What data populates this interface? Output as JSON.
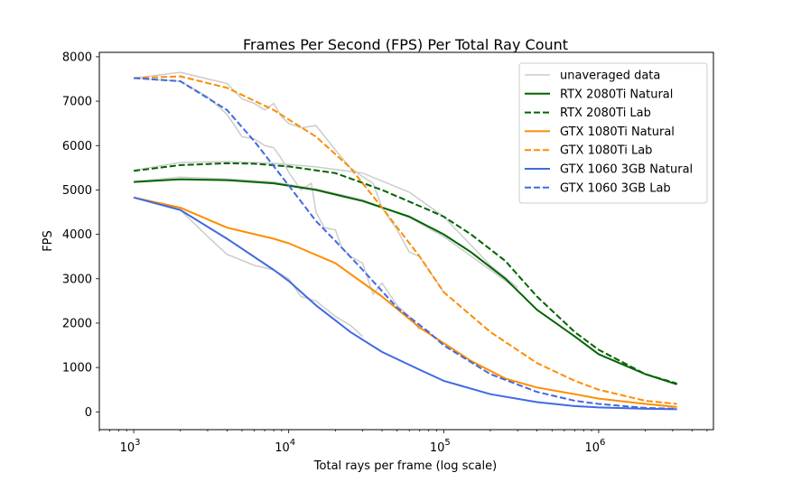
{
  "chart_data": {
    "type": "line",
    "title": "Frames Per Second (FPS) Per Total Ray Count",
    "xlabel": "Total rays per frame (log scale)",
    "ylabel": "FPS",
    "xscale": "log",
    "xlim": [
      600,
      5500000
    ],
    "ylim": [
      -400,
      8100
    ],
    "xticks": [
      {
        "value": 1000,
        "base": "10",
        "exp": "3"
      },
      {
        "value": 10000,
        "base": "10",
        "exp": "4"
      },
      {
        "value": 100000,
        "base": "10",
        "exp": "5"
      },
      {
        "value": 1000000,
        "base": "10",
        "exp": "6"
      }
    ],
    "yticks": [
      "0",
      "1000",
      "2000",
      "3000",
      "4000",
      "5000",
      "6000",
      "7000",
      "8000"
    ],
    "grid": false,
    "legend_position": "top-right",
    "unaveraged_label": "unaveraged data",
    "unaveraged_color": "#cccccc",
    "series": [
      {
        "name": "RTX 2080Ti Natural",
        "color": "#006400",
        "dash": "solid",
        "x": [
          1000,
          2000,
          4000,
          8000,
          15000,
          30000,
          60000,
          100000,
          150000,
          250000,
          400000,
          700000,
          1000000,
          2000000,
          3200000
        ],
        "y": [
          5180,
          5240,
          5220,
          5150,
          5000,
          4750,
          4400,
          4000,
          3600,
          3000,
          2300,
          1700,
          1300,
          850,
          620
        ]
      },
      {
        "name": "RTX 2080Ti Lab",
        "color": "#006400",
        "dash": "dashed",
        "x": [
          1000,
          2000,
          4000,
          6000,
          10000,
          20000,
          40000,
          80000,
          100000,
          150000,
          250000,
          400000,
          700000,
          1000000,
          2000000,
          3200000
        ],
        "y": [
          5430,
          5560,
          5600,
          5590,
          5530,
          5380,
          5000,
          4550,
          4400,
          4000,
          3400,
          2600,
          1800,
          1400,
          850,
          640
        ]
      },
      {
        "name": "GTX 1080Ti Natural",
        "color": "#ff8c00",
        "dash": "solid",
        "x": [
          1000,
          2000,
          4000,
          8000,
          10000,
          20000,
          40000,
          70000,
          100000,
          150000,
          250000,
          400000,
          700000,
          1000000,
          2000000,
          3200000
        ],
        "y": [
          4830,
          4600,
          4150,
          3900,
          3800,
          3350,
          2600,
          1900,
          1550,
          1150,
          750,
          550,
          400,
          300,
          180,
          110
        ]
      },
      {
        "name": "GTX 1080Ti Lab",
        "color": "#ff8c00",
        "dash": "dashed",
        "x": [
          1000,
          2000,
          4000,
          8000,
          15000,
          25000,
          40000,
          70000,
          100000,
          200000,
          400000,
          700000,
          1000000,
          2000000,
          3200000
        ],
        "y": [
          7520,
          7560,
          7300,
          6800,
          6200,
          5500,
          4600,
          3500,
          2700,
          1800,
          1100,
          700,
          500,
          250,
          180
        ]
      },
      {
        "name": "GTX 1060 3GB Natural",
        "color": "#4169e1",
        "dash": "solid",
        "x": [
          1000,
          2000,
          4000,
          8000,
          10000,
          15000,
          25000,
          40000,
          70000,
          100000,
          200000,
          400000,
          700000,
          1000000,
          2000000,
          3200000
        ],
        "y": [
          4830,
          4550,
          3900,
          3200,
          2950,
          2400,
          1800,
          1350,
          950,
          700,
          400,
          220,
          130,
          100,
          70,
          60
        ]
      },
      {
        "name": "GTX 1060 3GB Lab",
        "color": "#4169e1",
        "dash": "dashed",
        "x": [
          1000,
          2000,
          4000,
          6000,
          10000,
          15000,
          20000,
          30000,
          50000,
          80000,
          100000,
          200000,
          400000,
          700000,
          1000000,
          2000000,
          3200000
        ],
        "y": [
          7520,
          7450,
          6800,
          6100,
          5100,
          4300,
          3850,
          3200,
          2350,
          1800,
          1500,
          850,
          450,
          250,
          180,
          90,
          70
        ]
      }
    ],
    "unaveraged": [
      {
        "x": [
          1000,
          2000,
          3000,
          4000,
          5000,
          6000,
          7000,
          8000,
          9000,
          10000,
          12000,
          15000,
          20000,
          25000,
          30000,
          35000,
          40000,
          50000,
          60000,
          70000,
          80000,
          100000
        ],
        "y": [
          7520,
          7650,
          7500,
          7400,
          7050,
          6950,
          6800,
          6950,
          6650,
          6500,
          6400,
          6450,
          5900,
          5500,
          5300,
          5150,
          4600,
          4100,
          3600,
          3500,
          3200,
          2700
        ]
      },
      {
        "x": [
          1000,
          2000,
          3000,
          4000,
          5000,
          6000,
          7000,
          8000,
          9000,
          10000,
          12000,
          14000,
          15000,
          17000,
          20000,
          22000,
          25000,
          30000,
          35000,
          40000,
          50000,
          60000,
          70000
        ],
        "y": [
          7520,
          7450,
          7100,
          6700,
          6200,
          6150,
          6000,
          5950,
          5700,
          5400,
          5000,
          5150,
          4500,
          4150,
          4100,
          3700,
          3500,
          3350,
          2650,
          2900,
          2400,
          2150,
          1850
        ]
      },
      {
        "x": [
          1000,
          2000,
          4000,
          8000,
          15000,
          30000,
          60000,
          100000,
          200000,
          300000
        ],
        "y": [
          5440,
          5620,
          5640,
          5600,
          5520,
          5380,
          4950,
          4400,
          3300,
          2800
        ]
      },
      {
        "x": [
          1000,
          2000,
          4000,
          8000,
          15000,
          30000,
          60000,
          100000,
          200000,
          300000
        ],
        "y": [
          5190,
          5290,
          5250,
          5180,
          5020,
          4780,
          4380,
          3950,
          3200,
          2750
        ]
      },
      {
        "x": [
          1000,
          2000,
          3000,
          4000,
          6000,
          8000,
          10000,
          12000,
          15000,
          20000,
          25000,
          30000
        ],
        "y": [
          4830,
          4550,
          3950,
          3550,
          3300,
          3200,
          3000,
          2600,
          2500,
          2150,
          1950,
          1700
        ]
      }
    ]
  }
}
